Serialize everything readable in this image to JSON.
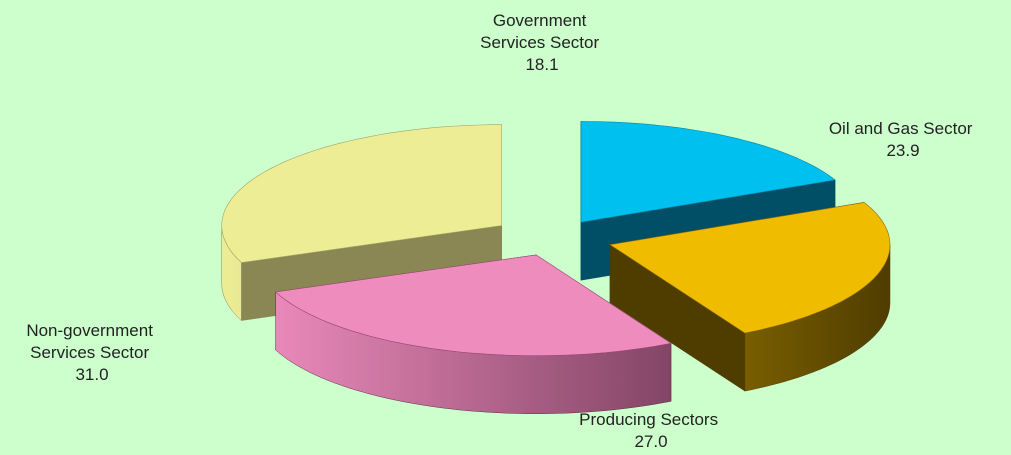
{
  "chart_data": {
    "type": "pie",
    "title": "",
    "three_d": true,
    "exploded": true,
    "background": "#ccffcc",
    "slices": [
      {
        "label_lines": [
          "Government",
          "Services Sector"
        ],
        "value": 18.1,
        "value_text": "18.1",
        "colors": {
          "top": "#00c0ef",
          "side": "#0086a8",
          "dark": "#004f66"
        }
      },
      {
        "label_lines": [
          "Oil and Gas Sector"
        ],
        "value": 23.9,
        "value_text": "23.9",
        "colors": {
          "top": "#f0bc00",
          "side": "#8a6a00",
          "dark": "#4f3d00"
        }
      },
      {
        "label_lines": [
          "Producing Sectors"
        ],
        "value": 27.0,
        "value_text": "27.0",
        "colors": {
          "top": "#ee8cbd",
          "side": "#9c4a78",
          "dark": "#5e2d48"
        }
      },
      {
        "label_lines": [
          "Non-government",
          "Services Sector"
        ],
        "value": 31.0,
        "value_text": "31.0",
        "colors": {
          "top": "#eded96",
          "side": "#a6a468",
          "dark": "#8a8754"
        }
      }
    ]
  }
}
